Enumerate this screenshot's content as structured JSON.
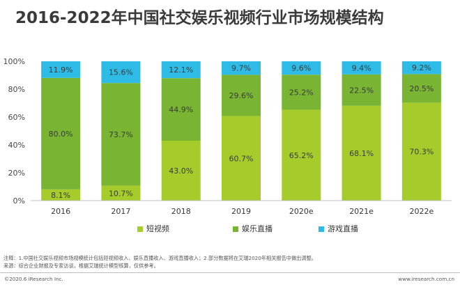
{
  "title": "2016-2022年中国社交娱乐视频行业市场规模结构",
  "chart_data": {
    "type": "bar",
    "stacked": true,
    "percent": true,
    "categories": [
      "2016",
      "2017",
      "2018",
      "2019",
      "2020e",
      "2021e",
      "2022e"
    ],
    "series": [
      {
        "name": "短视频",
        "color": "#a6cc2c",
        "values": [
          8.1,
          10.7,
          43.0,
          60.7,
          65.2,
          68.1,
          70.3
        ]
      },
      {
        "name": "娱乐直播",
        "color": "#79b532",
        "values": [
          80.0,
          73.7,
          44.9,
          29.6,
          25.2,
          22.5,
          20.5
        ]
      },
      {
        "name": "游戏直播",
        "color": "#2ebbe6",
        "values": [
          11.9,
          15.6,
          12.1,
          9.7,
          9.6,
          9.4,
          9.2
        ]
      }
    ],
    "yticks": [
      "0%",
      "20%",
      "40%",
      "60%",
      "80%",
      "100%"
    ],
    "ylim": [
      0,
      100
    ],
    "legend_position": "bottom",
    "value_format": "one-decimal-percent"
  },
  "footer": {
    "note": "注释：1.中国社交娱乐视频市场规模统计包括短视频收入、娱乐直播收入、游戏直播收入；2.部分数据将在艾瑞2020年相关报告中做出调整。",
    "source": "来源：综合企业财报及专家访谈，根据艾瑞统计模型核算，仅供参考。",
    "copyright": "©2020.6 iResearch Inc.",
    "website": "www.iresearch.com.cn"
  }
}
